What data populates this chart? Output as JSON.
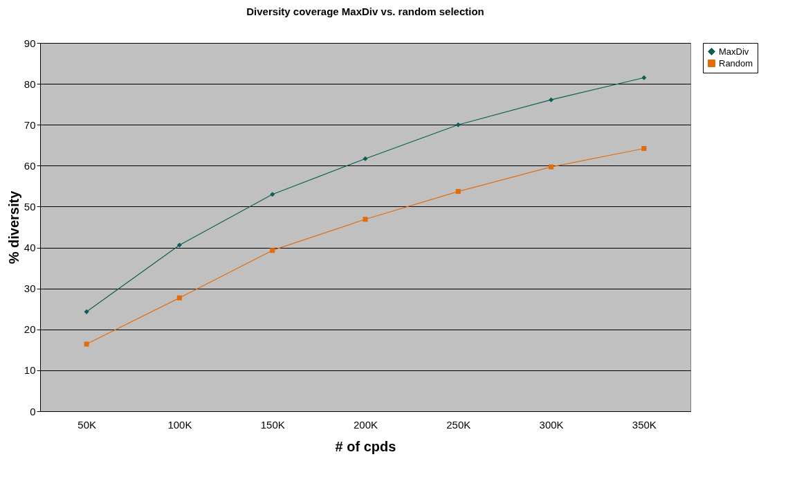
{
  "chart_data": {
    "type": "line",
    "title": "Diversity coverage MaxDiv vs. random selection",
    "xlabel": "# of cpds",
    "ylabel": "% diversity",
    "categories": [
      "50K",
      "100K",
      "150K",
      "200K",
      "250K",
      "300K",
      "350K"
    ],
    "series": [
      {
        "name": "MaxDiv",
        "color": "#0b5f55",
        "marker": "diamond",
        "values": [
          24.3,
          40.6,
          53.0,
          61.7,
          70.0,
          76.1,
          81.5
        ]
      },
      {
        "name": "Random",
        "color": "#e36c0a",
        "marker": "square",
        "values": [
          16.4,
          27.7,
          39.3,
          46.9,
          53.7,
          59.7,
          64.2
        ]
      }
    ],
    "ylim": [
      0,
      90
    ],
    "yticks": [
      0,
      10,
      20,
      30,
      40,
      50,
      60,
      70,
      80,
      90
    ],
    "grid": "y",
    "legend": "right",
    "line_style": "solid"
  }
}
